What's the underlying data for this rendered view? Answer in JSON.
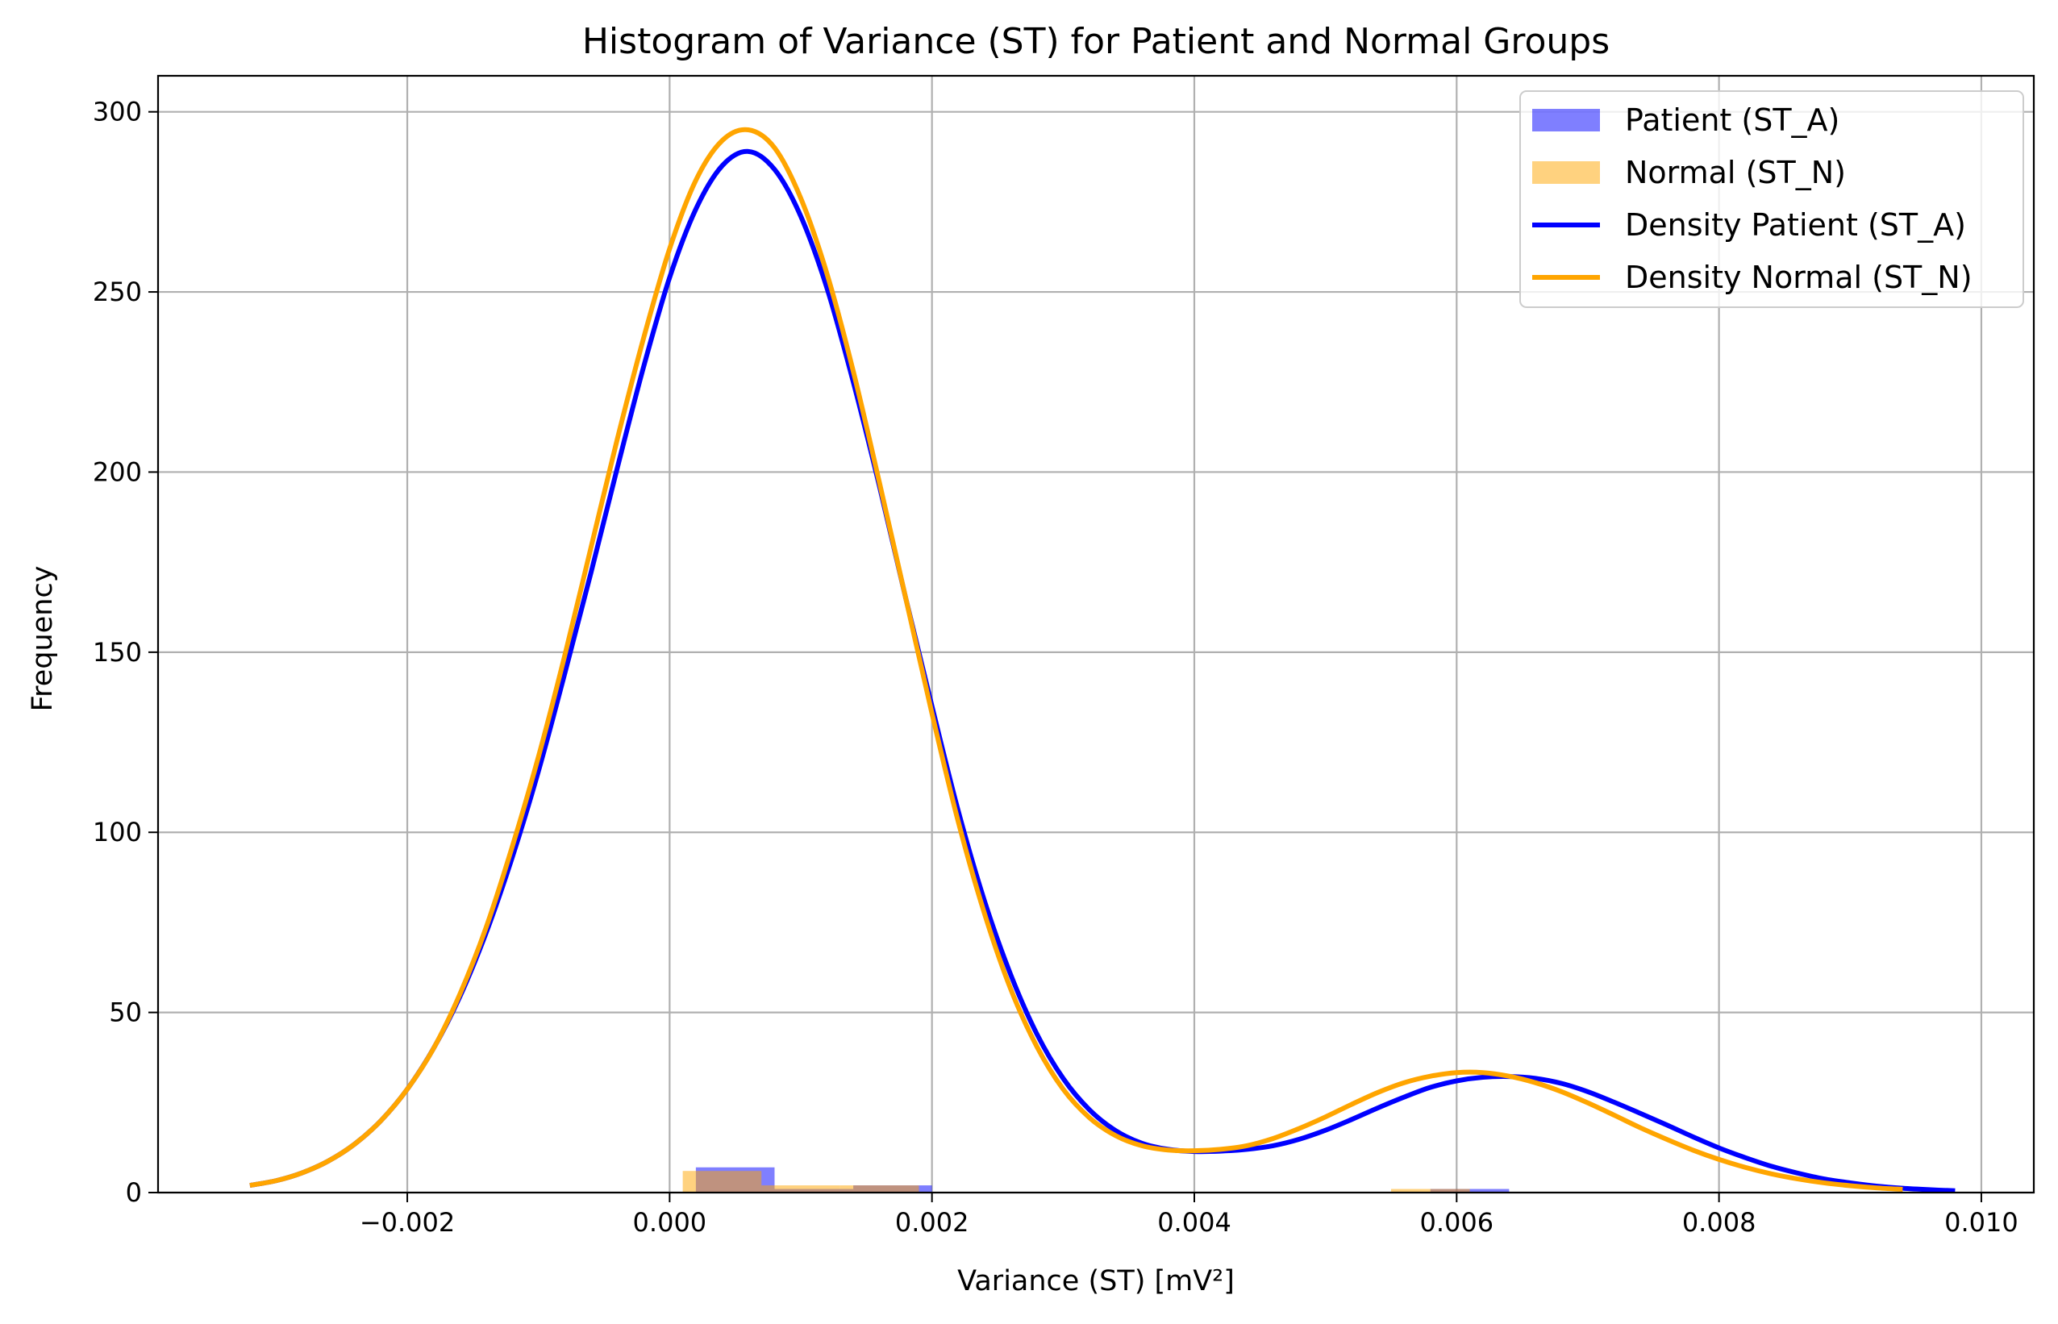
{
  "chart_data": {
    "type": "histogram",
    "title": "Histogram of Variance (ST) for Patient and Normal Groups",
    "xlabel": "Variance (ST) [mV²]",
    "ylabel": "Frequency",
    "xlim": [
      -0.0039,
      0.0104
    ],
    "ylim": [
      0,
      310
    ],
    "xticks": [
      -0.002,
      0.0,
      0.002,
      0.004,
      0.006,
      0.008,
      0.01
    ],
    "xtick_labels": [
      "−0.002",
      "0.000",
      "0.002",
      "0.004",
      "0.006",
      "0.008",
      "0.010"
    ],
    "yticks": [
      0,
      50,
      100,
      150,
      200,
      250,
      300
    ],
    "ytick_labels": [
      "0",
      "50",
      "100",
      "150",
      "200",
      "250",
      "300"
    ],
    "grid": true,
    "legend_position": "top-right",
    "legend": [
      {
        "label": "Patient (ST_A)",
        "kind": "patch",
        "color": "#0000ff",
        "opacity": 0.5
      },
      {
        "label": "Normal (ST_N)",
        "kind": "patch",
        "color": "#ffa500",
        "opacity": 0.5
      },
      {
        "label": "Density Patient (ST_A)",
        "kind": "line",
        "color": "#0000ff"
      },
      {
        "label": "Density Normal (ST_N)",
        "kind": "line",
        "color": "#ffa500"
      }
    ],
    "histograms": [
      {
        "name": "Patient (ST_A)",
        "color": "#0000ff",
        "opacity": 0.5,
        "bins": [
          {
            "x0": 0.0002,
            "x1": 0.0008,
            "value": 7
          },
          {
            "x0": 0.0008,
            "x1": 0.0014,
            "value": 1
          },
          {
            "x0": 0.0014,
            "x1": 0.002,
            "value": 2
          },
          {
            "x0": 0.0058,
            "x1": 0.0064,
            "value": 1
          }
        ]
      },
      {
        "name": "Normal (ST_N)",
        "color": "#ffa500",
        "opacity": 0.5,
        "bins": [
          {
            "x0": 0.0001,
            "x1": 0.0007,
            "value": 6
          },
          {
            "x0": 0.0007,
            "x1": 0.0013,
            "value": 2
          },
          {
            "x0": 0.0013,
            "x1": 0.0019,
            "value": 2
          },
          {
            "x0": 0.0055,
            "x1": 0.0061,
            "value": 1
          }
        ]
      }
    ],
    "series": [
      {
        "name": "Density Patient (ST_A)",
        "type": "line",
        "color": "#0000ff",
        "x": [
          -0.0032,
          -0.003,
          -0.0028,
          -0.0026,
          -0.0024,
          -0.0022,
          -0.002,
          -0.0018,
          -0.0016,
          -0.0014,
          -0.0012,
          -0.001,
          -0.0008,
          -0.0006,
          -0.0004,
          -0.0002,
          0.0,
          0.0002,
          0.0004,
          0.0006,
          0.0008,
          0.001,
          0.0012,
          0.0014,
          0.0016,
          0.0018,
          0.002,
          0.0022,
          0.0024,
          0.0026,
          0.0028,
          0.003,
          0.0032,
          0.0034,
          0.0036,
          0.0038,
          0.004,
          0.0042,
          0.0044,
          0.0046,
          0.0048,
          0.005,
          0.0052,
          0.0054,
          0.0056,
          0.0058,
          0.006,
          0.0062,
          0.0064,
          0.0066,
          0.0068,
          0.007,
          0.0072,
          0.0074,
          0.0076,
          0.0078,
          0.008,
          0.0082,
          0.0084,
          0.0086,
          0.0088,
          0.009,
          0.0092,
          0.0094,
          0.0096,
          0.0098
        ],
        "y": [
          2,
          3.3,
          5.5,
          8.8,
          13.5,
          20,
          28.7,
          40,
          54.3,
          72,
          93,
          117,
          144,
          172,
          201,
          229,
          254,
          273,
          285,
          289,
          284,
          271,
          251,
          225,
          196,
          165,
          135,
          106,
          81,
          60.5,
          44,
          31.7,
          23,
          17.2,
          13.7,
          12,
          11.4,
          11.5,
          12,
          13,
          14.8,
          17.3,
          20.3,
          23.5,
          26.5,
          29.2,
          31,
          32,
          32.2,
          31.7,
          30.3,
          28,
          25.1,
          22,
          18.8,
          15.5,
          12.4,
          9.7,
          7.3,
          5.4,
          3.8,
          2.7,
          1.8,
          1.2,
          0.8,
          0.5
        ]
      },
      {
        "name": "Density Normal (ST_N)",
        "type": "line",
        "color": "#ffa500",
        "x": [
          -0.0032,
          -0.003,
          -0.0028,
          -0.0026,
          -0.0024,
          -0.0022,
          -0.002,
          -0.0018,
          -0.0016,
          -0.0014,
          -0.0012,
          -0.001,
          -0.0008,
          -0.0006,
          -0.0004,
          -0.0002,
          0.0,
          0.0002,
          0.0004,
          0.0006,
          0.0008,
          0.001,
          0.0012,
          0.0014,
          0.0016,
          0.0018,
          0.002,
          0.0022,
          0.0024,
          0.0026,
          0.0028,
          0.003,
          0.0032,
          0.0034,
          0.0036,
          0.0038,
          0.004,
          0.0042,
          0.0044,
          0.0046,
          0.0048,
          0.005,
          0.0052,
          0.0054,
          0.0056,
          0.0058,
          0.006,
          0.0062,
          0.0064,
          0.0066,
          0.0068,
          0.007,
          0.0072,
          0.0074,
          0.0076,
          0.0078,
          0.008,
          0.0082,
          0.0084,
          0.0086,
          0.0088,
          0.009,
          0.0092,
          0.0094
        ],
        "y": [
          2,
          3.3,
          5.5,
          8.8,
          13.5,
          20,
          28.7,
          40,
          55,
          73.5,
          96,
          121,
          149,
          179,
          209,
          237,
          262,
          281,
          292,
          295,
          290,
          276,
          255,
          228,
          197,
          165,
          133,
          103,
          77.5,
          56.5,
          40.5,
          28.7,
          20.8,
          15.8,
          13,
          11.8,
          11.6,
          12,
          13,
          15,
          17.8,
          21,
          24.5,
          27.8,
          30.5,
          32.3,
          33.3,
          33.3,
          32.3,
          30.5,
          28,
          24.9,
          21.5,
          18,
          14.8,
          11.8,
          9.2,
          7,
          5.2,
          3.8,
          2.7,
          1.9,
          1.3,
          0.9
        ]
      }
    ]
  }
}
